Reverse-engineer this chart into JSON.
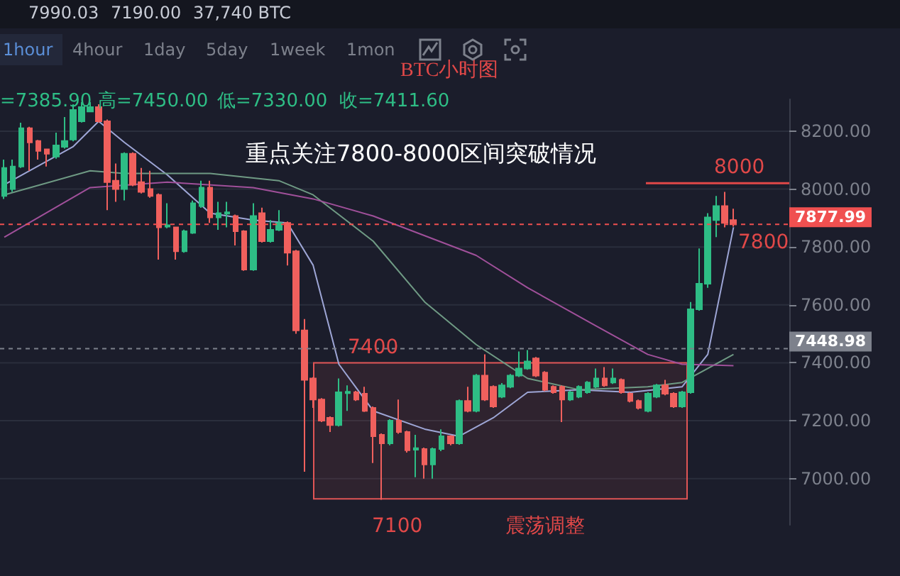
{
  "chart_data": {
    "type": "candlestick",
    "title": "BTC小时图",
    "subtitle": "重点关注7800-8000区间突破情况",
    "annotations": [
      "7990.03",
      "7190.00",
      "37,740 BTC",
      "1hour",
      "4hour",
      "1day",
      "5day",
      "1week",
      "1mon",
      "=7385.90",
      "高=7450.00",
      "低=7330.00",
      "收=7411.60",
      "8000",
      "7800",
      "7400",
      "7100",
      "震荡调整"
    ],
    "categories": [
      null,
      null,
      null,
      null,
      null,
      null,
      null,
      null,
      null,
      null,
      null,
      null,
      null,
      null,
      null,
      null,
      null,
      null,
      null,
      null,
      null,
      null,
      null,
      null,
      null,
      null,
      null,
      null,
      null,
      null,
      null,
      null,
      null,
      null,
      null,
      null,
      null,
      null,
      null,
      null,
      null,
      null,
      null,
      null,
      null,
      null,
      null,
      null,
      null,
      null,
      null,
      null,
      null,
      null,
      null,
      null,
      null,
      null,
      null,
      null,
      null,
      null,
      null,
      null,
      null,
      null,
      null,
      null,
      null,
      null,
      null,
      null,
      null,
      null,
      null,
      null,
      null,
      null,
      null,
      null,
      null,
      null,
      null,
      null,
      null,
      null,
      null,
      null,
      null,
      null,
      null,
      null
    ],
    "ohlc": [
      [
        7976,
        8102,
        7966,
        8073
      ],
      [
        8000,
        8102,
        7990,
        8078
      ],
      [
        8078,
        8229,
        8073,
        8210
      ],
      [
        8210,
        8215,
        8063,
        8161
      ],
      [
        8166,
        8170,
        8102,
        8132
      ],
      [
        8137,
        8140,
        8078,
        8122
      ],
      [
        8112,
        8195,
        8105,
        8151
      ],
      [
        8146,
        8249,
        8140,
        8166
      ],
      [
        8171,
        8293,
        8165,
        8273
      ],
      [
        8234,
        8300,
        8230,
        8283
      ],
      [
        8268,
        8300,
        8265,
        8283
      ],
      [
        8283,
        8293,
        8230,
        8234
      ],
      [
        8234,
        8240,
        7927,
        8024
      ],
      [
        8029,
        8088,
        7956,
        8000
      ],
      [
        8000,
        8127,
        7961,
        8122
      ],
      [
        8122,
        8127,
        8010,
        8015
      ],
      [
        8024,
        8073,
        7985,
        7990
      ],
      [
        8000,
        8063,
        7970,
        7976
      ],
      [
        7980,
        7985,
        7756,
        7868
      ],
      [
        7870,
        7951,
        7865,
        7875
      ],
      [
        7868,
        7870,
        7756,
        7785
      ],
      [
        7785,
        7860,
        7780,
        7854
      ],
      [
        7849,
        7960,
        7845,
        7951
      ],
      [
        7941,
        8029,
        7935,
        8005
      ],
      [
        8005,
        8029,
        7883,
        7902
      ],
      [
        7902,
        7956,
        7859,
        7917
      ],
      [
        7915,
        7956,
        7868,
        7920
      ],
      [
        7907,
        7912,
        7805,
        7854
      ],
      [
        7854,
        7858,
        7718,
        7722
      ],
      [
        7722,
        7951,
        7718,
        7907
      ],
      [
        7917,
        7936,
        7815,
        7820
      ],
      [
        7820,
        7893,
        7815,
        7859
      ],
      [
        7859,
        7927,
        7855,
        7883
      ],
      [
        7883,
        7888,
        7736,
        7780
      ],
      [
        7785,
        7790,
        7500,
        7512
      ],
      [
        7512,
        7551,
        7024,
        7341
      ],
      [
        7346,
        7350,
        7244,
        7273
      ],
      [
        7273,
        7278,
        7195,
        7200
      ],
      [
        7210,
        7215,
        7161,
        7185
      ],
      [
        7185,
        7346,
        7180,
        7298
      ],
      [
        7295,
        7322,
        7234,
        7300
      ],
      [
        7298,
        7303,
        7268,
        7273
      ],
      [
        7293,
        7317,
        7230,
        7234
      ],
      [
        7244,
        7249,
        7054,
        7146
      ],
      [
        7151,
        7156,
        6927,
        7122
      ],
      [
        7122,
        7205,
        7115,
        7200
      ],
      [
        7200,
        7273,
        7155,
        7161
      ],
      [
        7161,
        7165,
        7090,
        7098
      ],
      [
        7100,
        7151,
        7005,
        7105
      ],
      [
        7102,
        7107,
        7000,
        7049
      ],
      [
        7049,
        7107,
        7000,
        7102
      ],
      [
        7102,
        7170,
        7095,
        7146
      ],
      [
        7146,
        7150,
        7115,
        7122
      ],
      [
        7122,
        7273,
        7117,
        7268
      ],
      [
        7268,
        7317,
        7229,
        7234
      ],
      [
        7234,
        7361,
        7229,
        7356
      ],
      [
        7356,
        7429,
        7268,
        7273
      ],
      [
        7317,
        7322,
        7244,
        7249
      ],
      [
        7283,
        7330,
        7278,
        7322
      ],
      [
        7317,
        7361,
        7312,
        7356
      ],
      [
        7356,
        7439,
        7351,
        7380
      ],
      [
        7380,
        7444,
        7376,
        7405
      ],
      [
        7415,
        7420,
        7351,
        7356
      ],
      [
        7366,
        7371,
        7302,
        7307
      ],
      [
        7317,
        7322,
        7293,
        7298
      ],
      [
        7317,
        7322,
        7195,
        7273
      ],
      [
        7273,
        7303,
        7268,
        7298
      ],
      [
        7283,
        7322,
        7278,
        7317
      ],
      [
        7298,
        7337,
        7293,
        7332
      ],
      [
        7317,
        7380,
        7312,
        7346
      ],
      [
        7346,
        7385,
        7317,
        7322
      ],
      [
        7332,
        7380,
        7327,
        7346
      ],
      [
        7341,
        7346,
        7293,
        7298
      ],
      [
        7293,
        7298,
        7263,
        7268
      ],
      [
        7268,
        7273,
        7239,
        7244
      ],
      [
        7234,
        7298,
        7229,
        7293
      ],
      [
        7283,
        7327,
        7278,
        7322
      ],
      [
        7322,
        7341,
        7288,
        7293
      ],
      [
        7293,
        7298,
        7244,
        7249
      ],
      [
        7249,
        7303,
        7244,
        7298
      ],
      [
        7298,
        7610,
        7293,
        7585
      ],
      [
        7585,
        7795,
        7580,
        7673
      ],
      [
        7673,
        7917,
        7659,
        7902
      ],
      [
        7893,
        7976,
        7834,
        7941
      ],
      [
        7941,
        7990,
        7868,
        7883
      ],
      [
        7893,
        7932,
        7870,
        7878
      ],
      null,
      null,
      null,
      null,
      null,
      null
    ],
    "colors": [
      "#2ebd85",
      "#2ebd85",
      "#2ebd85",
      "#f0605d",
      "#f0605d",
      "#f0605d",
      "#2ebd85",
      "#2ebd85",
      "#2ebd85",
      "#2ebd85",
      "#2ebd85",
      "#f0605d",
      "#f0605d",
      "#f0605d",
      "#2ebd85",
      "#f0605d",
      "#f0605d",
      "#f0605d",
      "#f0605d",
      "#2ebd85",
      "#f0605d",
      "#2ebd85",
      "#2ebd85",
      "#2ebd85",
      "#f0605d",
      "#2ebd85",
      "#2ebd85",
      "#f0605d",
      "#f0605d",
      "#2ebd85",
      "#f0605d",
      "#2ebd85",
      "#2ebd85",
      "#f0605d",
      "#f0605d",
      "#f0605d",
      "#f0605d",
      "#f0605d",
      "#f0605d",
      "#2ebd85",
      "#2ebd85",
      "#f0605d",
      "#f0605d",
      "#f0605d",
      "#f0605d",
      "#2ebd85",
      "#f0605d",
      "#f0605d",
      "#2ebd85",
      "#f0605d",
      "#2ebd85",
      "#2ebd85",
      "#f0605d",
      "#2ebd85",
      "#f0605d",
      "#2ebd85",
      "#f0605d",
      "#f0605d",
      "#2ebd85",
      "#2ebd85",
      "#2ebd85",
      "#2ebd85",
      "#f0605d",
      "#f0605d",
      "#f0605d",
      "#f0605d",
      "#2ebd85",
      "#2ebd85",
      "#2ebd85",
      "#2ebd85",
      "#f0605d",
      "#2ebd85",
      "#f0605d",
      "#f0605d",
      "#f0605d",
      "#2ebd85",
      "#2ebd85",
      "#f0605d",
      "#f0605d",
      "#2ebd85",
      "#2ebd85",
      "#2ebd85",
      "#2ebd85",
      "#2ebd85",
      "#f0605d",
      "#f0605d",
      null,
      null,
      null,
      null,
      null,
      null
    ],
    "series": [
      {
        "type": "line",
        "color": "#9ea6d6",
        "values": [
          8015,
          null,
          null,
          null,
          null,
          null,
          null,
          null,
          8146,
          null,
          null,
          8234,
          null,
          null,
          8161,
          null,
          null,
          null,
          null,
          8049,
          null,
          null,
          null,
          null,
          7917,
          null,
          null,
          null,
          null,
          7893,
          null,
          null,
          null,
          7883,
          null,
          null,
          7737,
          null,
          null,
          7395,
          null,
          null,
          null,
          7234,
          null,
          null,
          null,
          null,
          null,
          7171,
          null,
          null,
          null,
          7146,
          null,
          null,
          null,
          7210,
          null,
          null,
          null,
          7298,
          null,
          null,
          null,
          null,
          null,
          7307,
          null,
          null,
          null,
          null,
          null,
          7298,
          null,
          null,
          null,
          null,
          null,
          7317,
          null,
          null,
          7429,
          null,
          null,
          7868,
          null,
          null,
          null,
          null,
          null,
          null
        ]
      },
      {
        "type": "line",
        "color": "#6f9a84",
        "values": [
          7980,
          null,
          null,
          null,
          null,
          null,
          null,
          null,
          null,
          null,
          8063,
          null,
          null,
          null,
          8054,
          null,
          null,
          null,
          null,
          null,
          null,
          null,
          null,
          null,
          8054,
          null,
          null,
          null,
          null,
          null,
          null,
          null,
          8029,
          null,
          null,
          null,
          7980,
          null,
          null,
          null,
          null,
          null,
          null,
          7820,
          null,
          null,
          null,
          null,
          null,
          7610,
          null,
          null,
          null,
          null,
          null,
          7463,
          null,
          null,
          null,
          null,
          null,
          7346,
          null,
          null,
          null,
          null,
          null,
          7307,
          null,
          null,
          null,
          null,
          null,
          null,
          null,
          7317,
          null,
          null,
          null,
          7332,
          null,
          null,
          null,
          null,
          null,
          7429,
          null,
          null,
          null,
          null,
          null,
          null
        ]
      },
      {
        "type": "line",
        "color": "#a0509a",
        "values": [
          7834,
          null,
          null,
          null,
          null,
          null,
          null,
          null,
          null,
          null,
          8005,
          null,
          null,
          null,
          null,
          null,
          null,
          null,
          null,
          8024,
          null,
          null,
          null,
          null,
          null,
          null,
          null,
          null,
          null,
          8005,
          null,
          null,
          null,
          null,
          null,
          null,
          7966,
          null,
          null,
          null,
          null,
          null,
          null,
          7907,
          null,
          null,
          null,
          null,
          null,
          null,
          null,
          null,
          null,
          null,
          null,
          7771,
          null,
          null,
          null,
          null,
          null,
          7659,
          null,
          null,
          null,
          null,
          null,
          null,
          null,
          7527,
          null,
          null,
          null,
          null,
          null,
          7429,
          null,
          null,
          null,
          7395,
          null,
          null,
          null,
          null,
          null,
          7390,
          null,
          null,
          null,
          null,
          null,
          null
        ]
      }
    ],
    "marker": "none",
    "ylim": [
      6840,
      8310
    ],
    "yticks": [
      {
        "value": 7000,
        "label": "7000.00"
      },
      {
        "value": 7200,
        "label": "7200.00"
      },
      {
        "value": 7400,
        "label": "7400.00"
      },
      {
        "value": 7600,
        "label": "7600.00"
      },
      {
        "value": 7800,
        "label": "7800.00"
      },
      {
        "value": 8000,
        "label": "8000.00"
      },
      {
        "value": 8200,
        "label": "8200.00"
      }
    ],
    "grid": "y",
    "ref_lines": [
      {
        "axis": "y",
        "value": 8020,
        "label": null,
        "color": "#e04848",
        "line_style": "solid"
      },
      {
        "axis": "y",
        "value": 7877.99,
        "label": "7877.99",
        "color": "#f05050",
        "line_style": "dashed"
      },
      {
        "axis": "y",
        "value": 7448.98,
        "label": "7448.98",
        "color": "#7d818c",
        "line_style": "dashed"
      }
    ],
    "bands": [
      {
        "axis": "y",
        "from": 6930,
        "to": 7400,
        "color": "#e05555"
      }
    ]
  }
}
